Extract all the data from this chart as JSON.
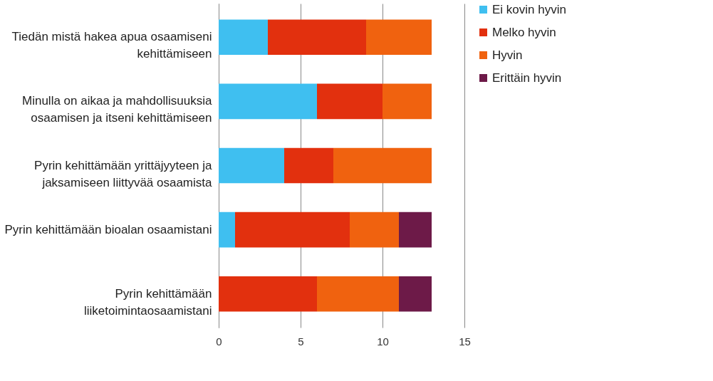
{
  "chart_data": {
    "type": "bar",
    "orientation": "horizontal",
    "stacked": true,
    "categories": [
      "Tiedän mistä hakea apua osaamiseni\nkehittämiseen",
      "Minulla on aikaa ja mahdollisuuksia\nosaamisen ja itseni kehittämiseen",
      "Pyrin kehittämään yrittäjyyteen ja\njaksamiseen liittyvää osaamista",
      "Pyrin kehittämään bioalan osaamistani",
      "Pyrin kehittämään\nliiketoimintaosaamistani"
    ],
    "series": [
      {
        "name": "Ei kovin hyvin",
        "color": "#3fbff0",
        "values": [
          3,
          6,
          4,
          1,
          null
        ]
      },
      {
        "name": "Melko hyvin",
        "color": "#e2300e",
        "values": [
          6,
          4,
          3,
          7,
          6
        ]
      },
      {
        "name": "Hyvin",
        "color": "#f0620f",
        "values": [
          4,
          3,
          6,
          3,
          5
        ]
      },
      {
        "name": "Erittäin hyvin",
        "color": "#6d1a48",
        "values": [
          null,
          null,
          null,
          2,
          2
        ]
      }
    ],
    "xlim": [
      0,
      15
    ],
    "xticks": [
      0,
      5,
      10,
      15
    ],
    "grid": "x",
    "legend": "right"
  }
}
